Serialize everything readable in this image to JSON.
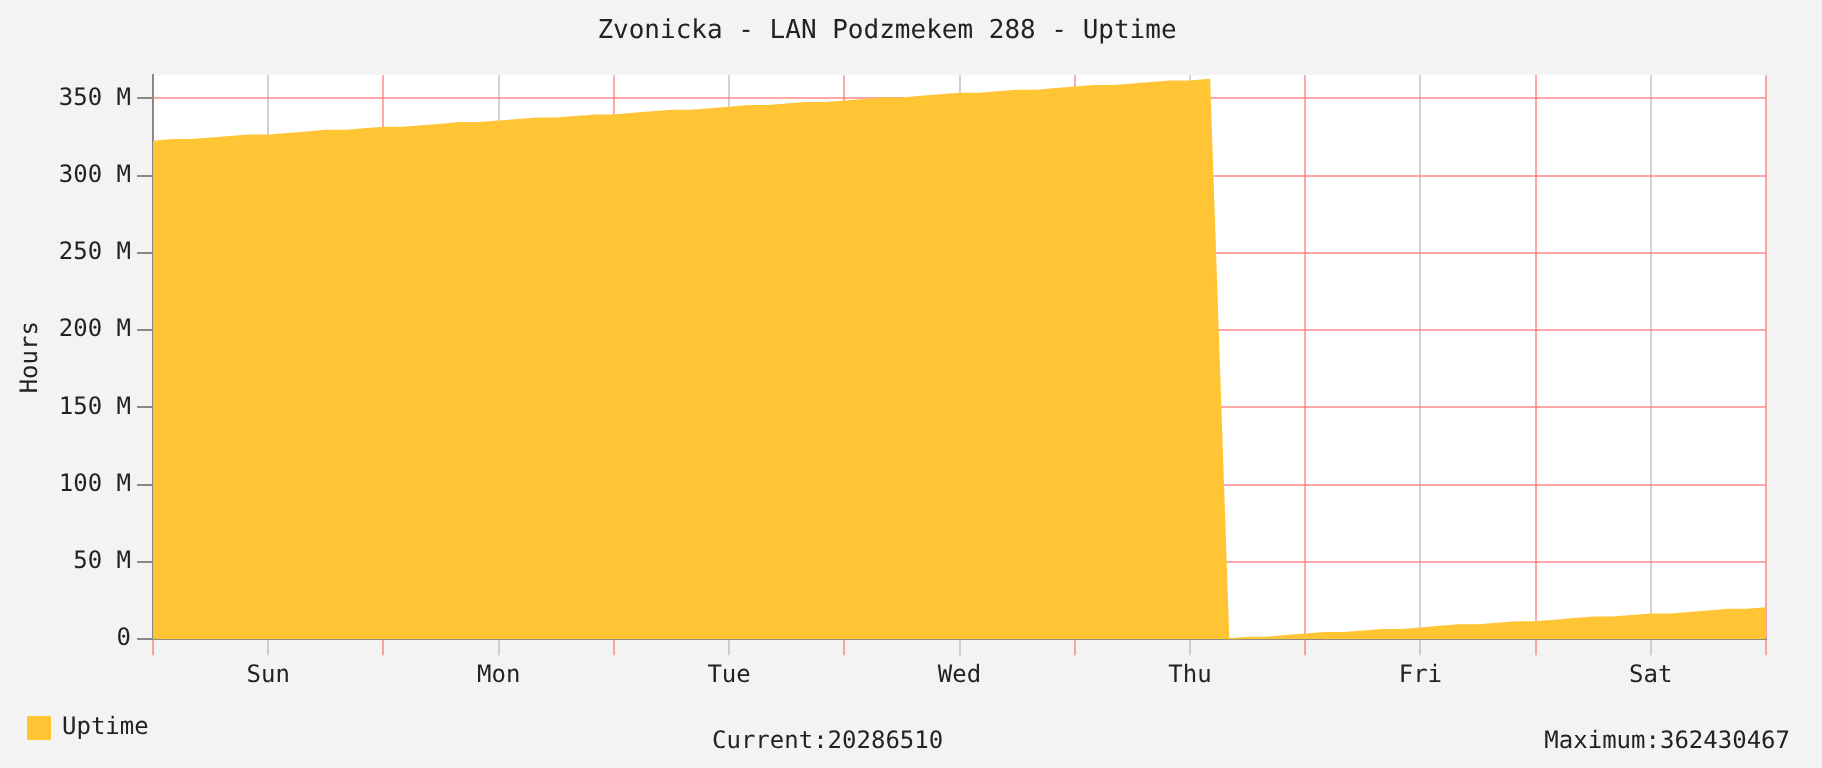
{
  "chart_data": {
    "type": "area",
    "title": "Zvonicka - LAN Podzmekem 288 - Uptime",
    "ylabel": "Hours",
    "categories": [
      null,
      null,
      null,
      null,
      null,
      null,
      "Sun",
      null,
      null,
      null,
      null,
      null,
      null,
      null,
      null,
      null,
      null,
      null,
      "Mon",
      null,
      null,
      null,
      null,
      null,
      null,
      null,
      null,
      null,
      null,
      null,
      "Tue",
      null,
      null,
      null,
      null,
      null,
      null,
      null,
      null,
      null,
      null,
      null,
      "Wed",
      null,
      null,
      null,
      null,
      null,
      null,
      null,
      null,
      null,
      null,
      null,
      "Thu",
      null,
      null,
      null,
      null,
      null,
      null,
      null,
      null,
      null,
      null,
      null,
      "Fri",
      null,
      null,
      null,
      null,
      null,
      null,
      null,
      null,
      null,
      null,
      null,
      "Sat",
      null,
      null,
      null,
      null,
      null,
      null
    ],
    "ylim": [
      0,
      365
    ],
    "yticks": [
      0,
      {
        "value": 50,
        "label": "50 M"
      },
      {
        "value": 100,
        "label": "100 M"
      },
      {
        "value": 150,
        "label": "150 M"
      },
      {
        "value": 200,
        "label": "200 M"
      },
      {
        "value": 250,
        "label": "250 M"
      },
      {
        "value": 300,
        "label": "300 M"
      },
      {
        "value": 350,
        "label": "350 M"
      }
    ],
    "grid": true,
    "legend": "bottom left",
    "series": [
      {
        "name": "Uptime",
        "color": "#ffc535",
        "values": [
          322,
          323,
          323,
          324,
          325,
          326,
          326,
          327,
          328,
          329,
          329,
          330,
          331,
          331,
          332,
          333,
          334,
          334,
          335,
          336,
          337,
          337,
          338,
          339,
          339,
          340,
          341,
          342,
          342,
          343,
          344,
          345,
          345,
          346,
          347,
          347,
          348,
          349,
          350,
          350,
          351,
          352,
          353,
          353,
          354,
          355,
          355,
          356,
          357,
          358,
          358,
          359,
          360,
          361,
          361,
          362,
          0,
          1,
          1,
          2,
          3,
          4,
          4,
          5,
          6,
          6,
          7,
          8,
          9,
          9,
          10,
          11,
          11,
          12,
          13,
          14,
          14,
          15,
          16,
          16,
          17,
          18,
          19,
          19,
          20
        ]
      }
    ],
    "annotations": [
      "Current:20286510",
      "Maximum:362430467"
    ]
  }
}
